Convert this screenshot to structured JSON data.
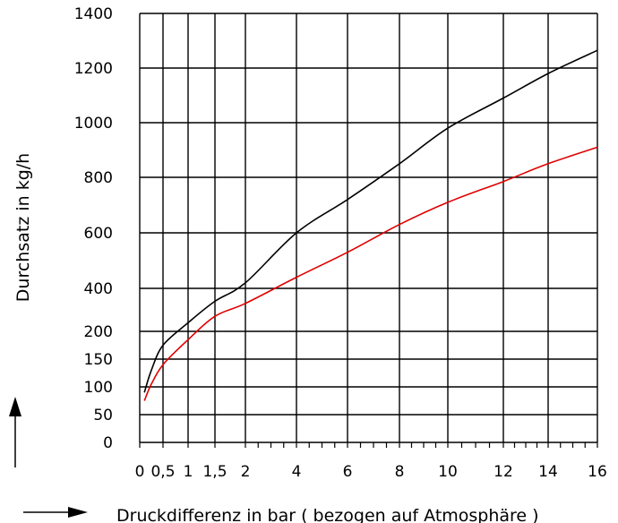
{
  "chart_data": {
    "type": "line",
    "title": "",
    "xlabel": "Druckdifferenz in bar ( bezogen auf Atmosphäre )",
    "ylabel": "Durchsatz in kg/h",
    "x_ticks": [
      {
        "value": 0,
        "label": "0"
      },
      {
        "value": 0.5,
        "label": "0,5"
      },
      {
        "value": 1,
        "label": "1"
      },
      {
        "value": 1.5,
        "label": "1,5"
      },
      {
        "value": 2,
        "label": "2"
      },
      {
        "value": 4,
        "label": "4"
      },
      {
        "value": 6,
        "label": "6"
      },
      {
        "value": 8,
        "label": "8"
      },
      {
        "value": 10,
        "label": "10"
      },
      {
        "value": 12,
        "label": "12"
      },
      {
        "value": 14,
        "label": "14"
      },
      {
        "value": 16,
        "label": "16"
      }
    ],
    "y_ticks": [
      {
        "value": 0,
        "label": "0"
      },
      {
        "value": 50,
        "label": "50"
      },
      {
        "value": 100,
        "label": "100"
      },
      {
        "value": 150,
        "label": "150"
      },
      {
        "value": 200,
        "label": "200"
      },
      {
        "value": 400,
        "label": "400"
      },
      {
        "value": 600,
        "label": "600"
      },
      {
        "value": 800,
        "label": "800"
      },
      {
        "value": 1000,
        "label": "1000"
      },
      {
        "value": 1200,
        "label": "1200"
      },
      {
        "value": 1400,
        "label": "1400"
      }
    ],
    "xlim": [
      0,
      16
    ],
    "ylim": [
      0,
      1400
    ],
    "grid": true,
    "legend": "none",
    "series": [
      {
        "color": "#000000",
        "x": [
          0.1,
          0.25,
          0.5,
          1,
          1.5,
          2,
          4,
          6,
          8,
          10,
          12,
          14,
          16
        ],
        "y": [
          90,
          130,
          175,
          240,
          340,
          420,
          600,
          720,
          850,
          980,
          1090,
          1180,
          1265
        ]
      },
      {
        "color": "#e00000",
        "x": [
          0.1,
          0.25,
          0.5,
          1,
          1.5,
          2,
          4,
          6,
          8,
          10,
          12,
          14,
          16
        ],
        "y": [
          75,
          105,
          140,
          185,
          270,
          330,
          440,
          530,
          630,
          710,
          785,
          850,
          910
        ]
      }
    ]
  }
}
